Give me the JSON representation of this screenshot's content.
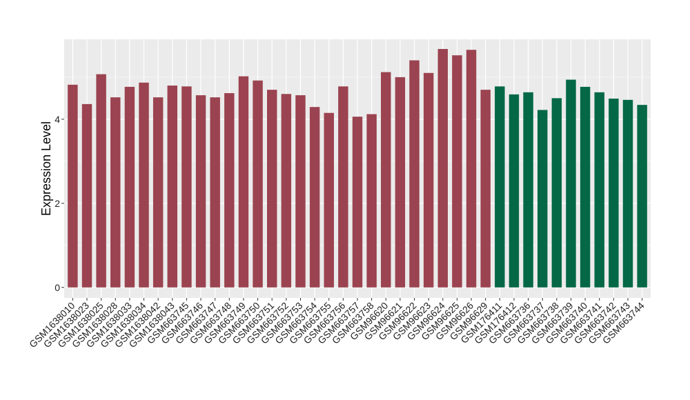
{
  "chart_data": {
    "type": "bar",
    "title": "",
    "xlabel": "",
    "ylabel": "Expression Level",
    "ylim": [
      -0.25,
      5.9
    ],
    "yticks": [
      0,
      2,
      4
    ],
    "grid": true,
    "legend": "none",
    "colors": {
      "panel_background": "#EBEBEB",
      "grid_line": "#FFFFFF",
      "group_a": "#9B4350",
      "group_b": "#046847"
    },
    "categories": [
      "GSM1638010",
      "GSM1638023",
      "GSM1638025",
      "GSM1638028",
      "GSM1638033",
      "GSM1638034",
      "GSM1638042",
      "GSM1638043",
      "GSM663745",
      "GSM663746",
      "GSM663747",
      "GSM663748",
      "GSM663749",
      "GSM663750",
      "GSM663751",
      "GSM663752",
      "GSM663753",
      "GSM663754",
      "GSM663755",
      "GSM663756",
      "GSM663757",
      "GSM663758",
      "GSM96620",
      "GSM96621",
      "GSM96622",
      "GSM96623",
      "GSM96624",
      "GSM96625",
      "GSM96626",
      "GSM96629",
      "GSM176411",
      "GSM176412",
      "GSM663736",
      "GSM663737",
      "GSM663738",
      "GSM663739",
      "GSM663740",
      "GSM663741",
      "GSM663742",
      "GSM663743",
      "GSM663744"
    ],
    "values": [
      4.82,
      4.36,
      5.07,
      4.52,
      4.77,
      4.87,
      4.52,
      4.8,
      4.78,
      4.57,
      4.52,
      4.62,
      5.02,
      4.92,
      4.7,
      4.6,
      4.57,
      4.29,
      4.15,
      4.78,
      4.06,
      4.12,
      5.12,
      5.0,
      5.4,
      5.1,
      5.67,
      5.52,
      5.65,
      4.7,
      4.78,
      4.59,
      4.64,
      4.22,
      4.5,
      4.94,
      4.77,
      4.64,
      4.49,
      4.46,
      4.34
    ],
    "groups": [
      "a",
      "a",
      "a",
      "a",
      "a",
      "a",
      "a",
      "a",
      "a",
      "a",
      "a",
      "a",
      "a",
      "a",
      "a",
      "a",
      "a",
      "a",
      "a",
      "a",
      "a",
      "a",
      "a",
      "a",
      "a",
      "a",
      "a",
      "a",
      "a",
      "a",
      "b",
      "b",
      "b",
      "b",
      "b",
      "b",
      "b",
      "b",
      "b",
      "b",
      "b"
    ]
  }
}
